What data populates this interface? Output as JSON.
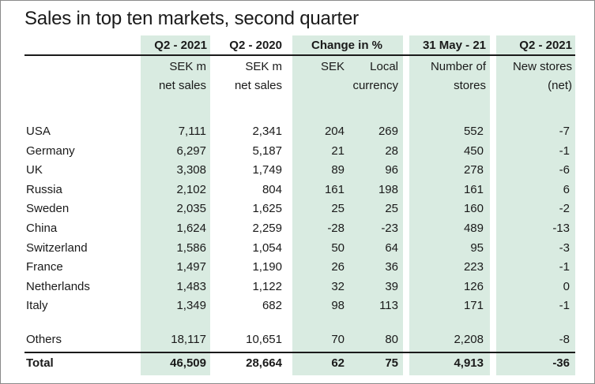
{
  "title": "Sales in top ten markets, second quarter",
  "columns": [
    {
      "header": "Q2 - 2021",
      "sub1": "SEK m",
      "sub2": "net sales"
    },
    {
      "header": "Q2 - 2020",
      "sub1": "SEK m",
      "sub2": "net sales"
    },
    {
      "header": "Change in %",
      "sub1": "SEK",
      "sub2": ""
    },
    {
      "header": "",
      "sub1": "Local",
      "sub2": "currency"
    },
    {
      "header": "31 May - 21",
      "sub1": "Number of",
      "sub2": "stores"
    },
    {
      "header": "Q2 - 2021",
      "sub1": "New stores",
      "sub2": "(net)"
    }
  ],
  "rows": [
    {
      "name": "USA",
      "values": [
        "7,111",
        "2,341",
        "204",
        "269",
        "552",
        "-7"
      ]
    },
    {
      "name": "Germany",
      "values": [
        "6,297",
        "5,187",
        "21",
        "28",
        "450",
        "-1"
      ]
    },
    {
      "name": "UK",
      "values": [
        "3,308",
        "1,749",
        "89",
        "96",
        "278",
        "-6"
      ]
    },
    {
      "name": "Russia",
      "values": [
        "2,102",
        "804",
        "161",
        "198",
        "161",
        "6"
      ]
    },
    {
      "name": "Sweden",
      "values": [
        "2,035",
        "1,625",
        "25",
        "25",
        "160",
        "-2"
      ]
    },
    {
      "name": "China",
      "values": [
        "1,624",
        "2,259",
        "-28",
        "-23",
        "489",
        "-13"
      ]
    },
    {
      "name": "Switzerland",
      "values": [
        "1,586",
        "1,054",
        "50",
        "64",
        "95",
        "-3"
      ]
    },
    {
      "name": "France",
      "values": [
        "1,497",
        "1,190",
        "26",
        "36",
        "223",
        "-1"
      ]
    },
    {
      "name": "Netherlands",
      "values": [
        "1,483",
        "1,122",
        "32",
        "39",
        "126",
        "0"
      ]
    },
    {
      "name": "Italy",
      "values": [
        "1,349",
        "682",
        "98",
        "113",
        "171",
        "-1"
      ]
    }
  ],
  "others": {
    "name": "Others",
    "values": [
      "18,117",
      "10,651",
      "70",
      "80",
      "2,208",
      "-8"
    ]
  },
  "total": {
    "name": "Total",
    "values": [
      "46,509",
      "28,664",
      "62",
      "75",
      "4,913",
      "-36"
    ]
  },
  "colors": {
    "band": "#d9ebe1",
    "text": "#1a1a1a"
  }
}
